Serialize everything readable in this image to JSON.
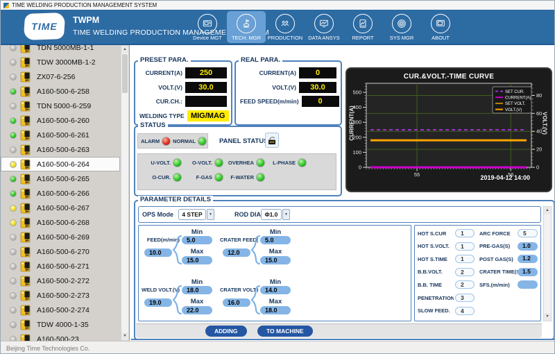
{
  "window": {
    "title": "TIME WELDING PRODUCTION MANAGEMENT SYSTEM",
    "status_bar": "Beijing Time Technologies Co."
  },
  "header": {
    "logo_text": "TIME",
    "app_abbr": "TWPM",
    "app_name": "TIME WELDING PRODUCTION MANAGEMENT SYSTEM",
    "accent_color": "#2d6ba3",
    "nav": [
      {
        "label": "Device MGT",
        "icon": "machine-icon",
        "active": false
      },
      {
        "label": "TECH. MGR",
        "icon": "tech-flag-icon",
        "active": true
      },
      {
        "label": "PRODUCTION",
        "icon": "production-people-icon",
        "active": false
      },
      {
        "label": "DATA ANSYS",
        "icon": "data-analysis-icon",
        "active": false
      },
      {
        "label": "REPORT",
        "icon": "report-icon",
        "active": false
      },
      {
        "label": "SYS MGR",
        "icon": "system-target-icon",
        "active": false
      },
      {
        "label": "ABOUT",
        "icon": "about-screen-icon",
        "active": false
      }
    ]
  },
  "sidebar": {
    "items": [
      {
        "label": "TDN 5000MB-1-1",
        "led": "gray",
        "selected": false
      },
      {
        "label": "TDW 3000MB-1-2",
        "led": "gray",
        "selected": false
      },
      {
        "label": "ZX07-6-256",
        "led": "gray",
        "selected": false
      },
      {
        "label": "A160-500-6-258",
        "led": "green",
        "selected": false
      },
      {
        "label": "TDN 5000-6-259",
        "led": "gray",
        "selected": false
      },
      {
        "label": "A160-500-6-260",
        "led": "green",
        "selected": false
      },
      {
        "label": "A160-500-6-261",
        "led": "green",
        "selected": false
      },
      {
        "label": "A160-500-6-263",
        "led": "gray",
        "selected": false
      },
      {
        "label": "A160-500-6-264",
        "led": "yellow",
        "selected": true
      },
      {
        "label": "A160-500-6-265",
        "led": "green",
        "selected": false
      },
      {
        "label": "A160-500-6-266",
        "led": "green",
        "selected": false
      },
      {
        "label": "A160-500-6-267",
        "led": "yellow",
        "selected": false
      },
      {
        "label": "A160-500-6-268",
        "led": "yellow",
        "selected": false
      },
      {
        "label": "A160-500-6-269",
        "led": "gray",
        "selected": false
      },
      {
        "label": "A160-500-6-270",
        "led": "gray",
        "selected": false
      },
      {
        "label": "A160-500-6-271",
        "led": "gray",
        "selected": false
      },
      {
        "label": "A160-500-2-272",
        "led": "gray",
        "selected": false
      },
      {
        "label": "A160-500-2-273",
        "led": "gray",
        "selected": false
      },
      {
        "label": "A160-500-2-274",
        "led": "gray",
        "selected": false
      },
      {
        "label": "TDW 4000-1-35",
        "led": "gray",
        "selected": false
      },
      {
        "label": "A160-500-23",
        "led": "gray",
        "selected": false
      }
    ]
  },
  "preset": {
    "title": "PRESET PARA.",
    "rows": [
      {
        "label": "CURRENT(A)",
        "value": "250",
        "style": "dark"
      },
      {
        "label": "VOLT.(V)",
        "value": "30.0",
        "style": "dark"
      },
      {
        "label": "CUR.CH.:",
        "value": "",
        "style": "dark"
      },
      {
        "label": "WELDING TYPE",
        "value": "MIG/MAG",
        "style": "inverse"
      }
    ]
  },
  "real": {
    "title": "REAL PARA.",
    "rows": [
      {
        "label": "CURRENT(A)",
        "value": "0",
        "style": "dark"
      },
      {
        "label": "VOLT.(V)",
        "value": "30.0",
        "style": "dark"
      },
      {
        "label": "FEED SPEED(m/min)",
        "value": "0",
        "style": "dark"
      }
    ]
  },
  "status": {
    "title": "STATUS",
    "alarm_label": "ALARM",
    "normal_label": "NORMAL",
    "alarm_led": "red",
    "normal_led": "green",
    "panel_status_label": "PANEL STATUS",
    "panel_lock_state": "unlocked",
    "indicators": [
      {
        "label": "U-VOLT.",
        "led": "green"
      },
      {
        "label": "O-VOLT.",
        "led": "green"
      },
      {
        "label": "OVERHEA",
        "led": "green"
      },
      {
        "label": "L-PHASE",
        "led": "green"
      },
      {
        "label": "O-CUR.",
        "led": "green"
      },
      {
        "label": "F-GAS",
        "led": "green"
      },
      {
        "label": "F-WATER",
        "led": "green"
      }
    ]
  },
  "chart_data": {
    "type": "line",
    "title": "CUR.&VOLT.-TIME CURVE",
    "ylabel_left": "CURRENT(A)",
    "ylabel_right": "VOLT.(V)",
    "timestamp": "2019-04-12 14:00",
    "ylim_left": [
      0,
      560
    ],
    "ylim_right": [
      0,
      93.5
    ],
    "yticks_left": [
      0,
      100,
      200,
      300,
      400,
      500
    ],
    "yticks_right": [
      0,
      20,
      40,
      60,
      80
    ],
    "y_minor_left": 20,
    "y_minor_right": 4,
    "xlim": [
      54.46,
      56.22
    ],
    "xticks": [
      55,
      56
    ],
    "x_minor_step": 0.03,
    "grid": true,
    "grid_color": "#41601d",
    "legend_position": "top-right",
    "series": [
      {
        "name": "SET CUR.",
        "axis": "left",
        "value": 250,
        "color": "#9933cc",
        "dash": true,
        "width": 2
      },
      {
        "name": "CURRENT(A)",
        "axis": "left",
        "value": 0,
        "color": "#cc00cc",
        "dash": false,
        "width": 3
      },
      {
        "name": "SET VOLT.",
        "axis": "right",
        "value": 30,
        "color": "#b8860b",
        "dash": false,
        "width": 1.5
      },
      {
        "name": "VOLT.(V)",
        "axis": "right",
        "value": 30,
        "color": "#ffa500",
        "dash": false,
        "width": 3
      }
    ]
  },
  "params": {
    "title": "PARAMETER DETAILS",
    "ops_mode_label": "OPS Mode",
    "ops_mode_value": "4 STEP",
    "rod_dia_label": "ROD DIA.",
    "rod_dia_value": "Φ1.0",
    "min_label": "Min",
    "max_label": "Max",
    "groups": [
      {
        "label": "FEED(m/min)",
        "value": "10.0",
        "min": "5.0",
        "max": "15.0"
      },
      {
        "label": "CRATER FEED(m/min)",
        "value": "12.0",
        "min": "5.0",
        "max": "15.0"
      },
      {
        "label": "WELD VOLT.(V)",
        "value": "19.0",
        "min": "18.0",
        "max": "22.0"
      },
      {
        "label": "CRATER VOLT.(V)",
        "value": "16.0",
        "min": "14.0",
        "max": "18.0"
      }
    ],
    "extras_left": [
      {
        "label": "HOT S.CUR",
        "value": "1",
        "style": "gray"
      },
      {
        "label": "HOT S.VOLT.",
        "value": "1",
        "style": "gray"
      },
      {
        "label": "HOT S.TIME",
        "value": "1",
        "style": "gray"
      },
      {
        "label": "B.B.VOLT.",
        "value": "2",
        "style": "gray"
      },
      {
        "label": "B.B. TIME",
        "value": "2",
        "style": "gray"
      },
      {
        "label": "PENETRATION",
        "value": "3",
        "style": "gray"
      },
      {
        "label": "SLOW FEED.",
        "value": "4",
        "style": "gray"
      }
    ],
    "extras_right": [
      {
        "label": "ARC FORCE",
        "value": "5",
        "style": "gray"
      },
      {
        "label": "PRE-GAS(S)",
        "value": "1.0",
        "style": "blue"
      },
      {
        "label": "POST GAS(S)",
        "value": "1.2",
        "style": "blue"
      },
      {
        "label": "CRATER TIME(S)",
        "value": "1.5",
        "style": "blue"
      },
      {
        "label": "SFS.(m/min)",
        "value": "",
        "style": "blue"
      }
    ],
    "buttons": [
      {
        "label": "ADDING"
      },
      {
        "label": "TO MACHINE"
      }
    ]
  }
}
